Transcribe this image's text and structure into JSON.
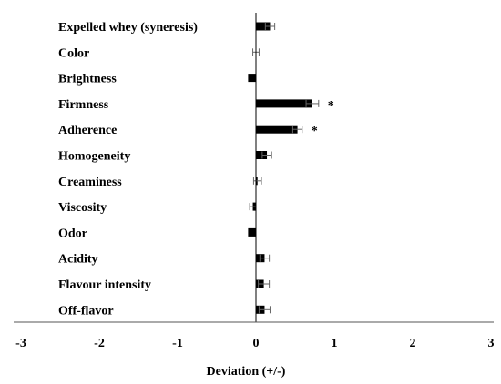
{
  "chart_data": {
    "type": "bar",
    "orientation": "horizontal",
    "xlabel": "Deviation (+/-)",
    "xlim": [
      -3,
      3
    ],
    "xticks": [
      "-3",
      "-2",
      "-1",
      "0",
      "1",
      "2",
      "3"
    ],
    "categories": [
      "Expelled whey (syneresis)",
      "Color",
      "Brightness",
      "Firmness",
      "Adherence",
      "Homogeneity",
      "Creaminess",
      "Viscosity",
      "Odor",
      "Acidity",
      "Flavour intensity",
      "Off-flavor"
    ],
    "values": [
      0.18,
      0.0,
      -0.1,
      0.72,
      0.53,
      0.14,
      0.02,
      -0.04,
      -0.1,
      0.11,
      0.1,
      0.11
    ],
    "errors": [
      0.06,
      0.04,
      0.0,
      0.08,
      0.06,
      0.06,
      0.05,
      0.04,
      0.0,
      0.06,
      0.07,
      0.07
    ],
    "significance": [
      "",
      "",
      "",
      "*",
      "*",
      "",
      "",
      "",
      "",
      "",
      "",
      ""
    ],
    "bar_color": "#000000",
    "grid": false
  }
}
